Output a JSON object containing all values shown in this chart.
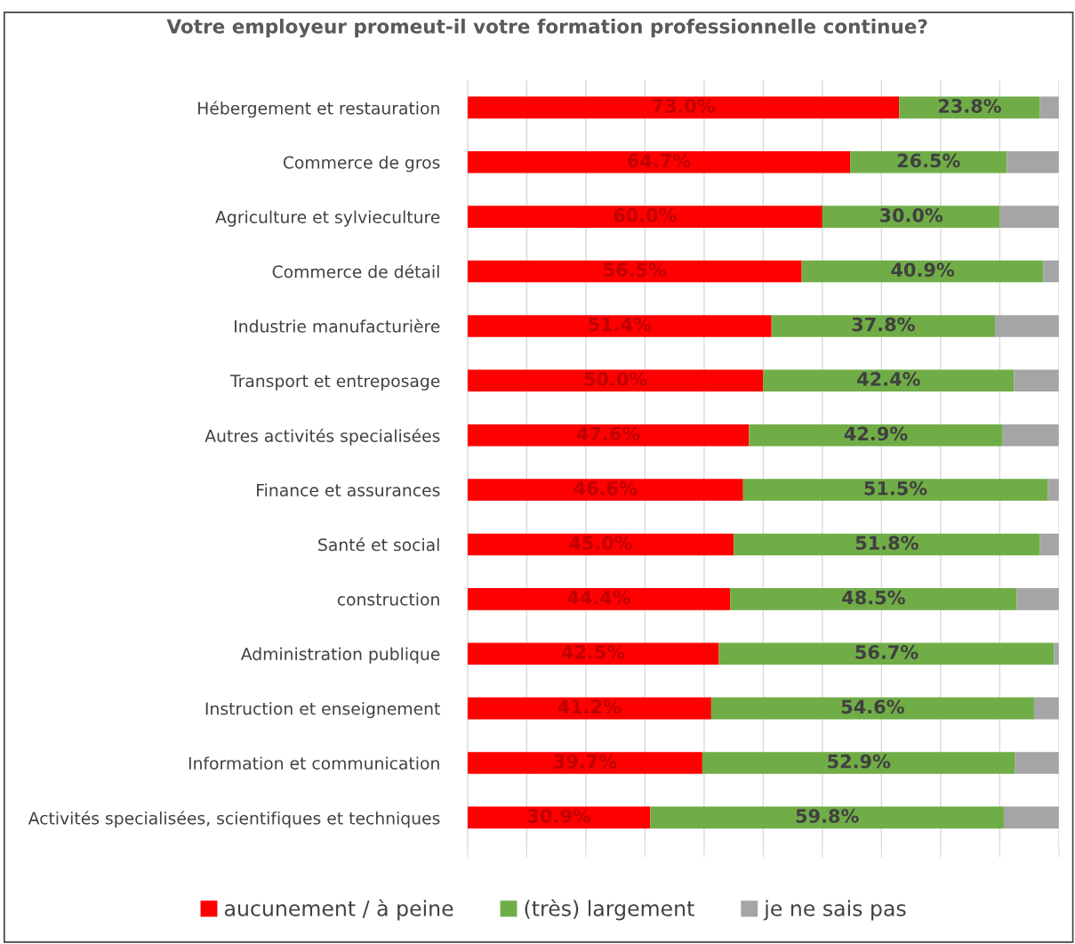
{
  "chart_data": {
    "type": "bar",
    "orientation": "horizontal",
    "stacked": true,
    "title": "Votre employeur promeut-il votre formation professionnelle continue?",
    "categories": [
      "Hébergement et restauration",
      "Commerce de gros",
      "Agriculture et sylvieculture",
      "Commerce de détail",
      "Industrie manufacturière",
      "Transport et entreposage",
      "Autres activités specialisées",
      "Finance et assurances",
      "Santé et social",
      "construction",
      "Administration publique",
      "Instruction et enseignement",
      "Information et communication",
      "Activités specialisées, scientifiques et techniques"
    ],
    "series": [
      {
        "name": "aucunement / à peine",
        "color": "#ff0000",
        "values": [
          73.0,
          64.7,
          60.0,
          56.5,
          51.4,
          50.0,
          47.6,
          46.6,
          45.0,
          44.4,
          42.5,
          41.2,
          39.7,
          30.9
        ],
        "value_labels": [
          "73.0%",
          "64.7%",
          "60.0%",
          "56.5%",
          "51.4%",
          "50.0%",
          "47.6%",
          "46.6%",
          "45.0%",
          "44.4%",
          "42.5%",
          "41.2%",
          "39.7%",
          "30.9%"
        ]
      },
      {
        "name": "(très) largement",
        "color": "#70ad47",
        "values": [
          23.8,
          26.5,
          30.0,
          40.9,
          37.8,
          42.4,
          42.9,
          51.5,
          51.8,
          48.5,
          56.7,
          54.6,
          52.9,
          59.8
        ],
        "value_labels": [
          "23.8%",
          "26.5%",
          "30.0%",
          "40.9%",
          "37.8%",
          "42.4%",
          "42.9%",
          "51.5%",
          "51.8%",
          "48.5%",
          "56.7%",
          "54.6%",
          "52.9%",
          "59.8%"
        ]
      },
      {
        "name": "je ne sais pas",
        "color": "#a5a5a5",
        "values": [
          3.2,
          8.8,
          10.0,
          2.6,
          10.8,
          7.6,
          9.5,
          1.9,
          3.2,
          7.1,
          0.8,
          4.2,
          7.4,
          9.3
        ]
      }
    ],
    "xlim": [
      0,
      100
    ],
    "xticks": [
      {
        "value": 0,
        "label": null
      },
      {
        "value": 10,
        "label": null
      },
      {
        "value": 20,
        "label": null
      },
      {
        "value": 30,
        "label": null
      },
      {
        "value": 40,
        "label": null
      },
      {
        "value": 50,
        "label": null
      },
      {
        "value": 60,
        "label": null
      },
      {
        "value": 70,
        "label": null
      },
      {
        "value": 80,
        "label": null
      },
      {
        "value": 90,
        "label": null
      },
      {
        "value": 100,
        "label": null
      }
    ],
    "tick_labels": "y",
    "grid": "x",
    "legend": "bottom"
  }
}
